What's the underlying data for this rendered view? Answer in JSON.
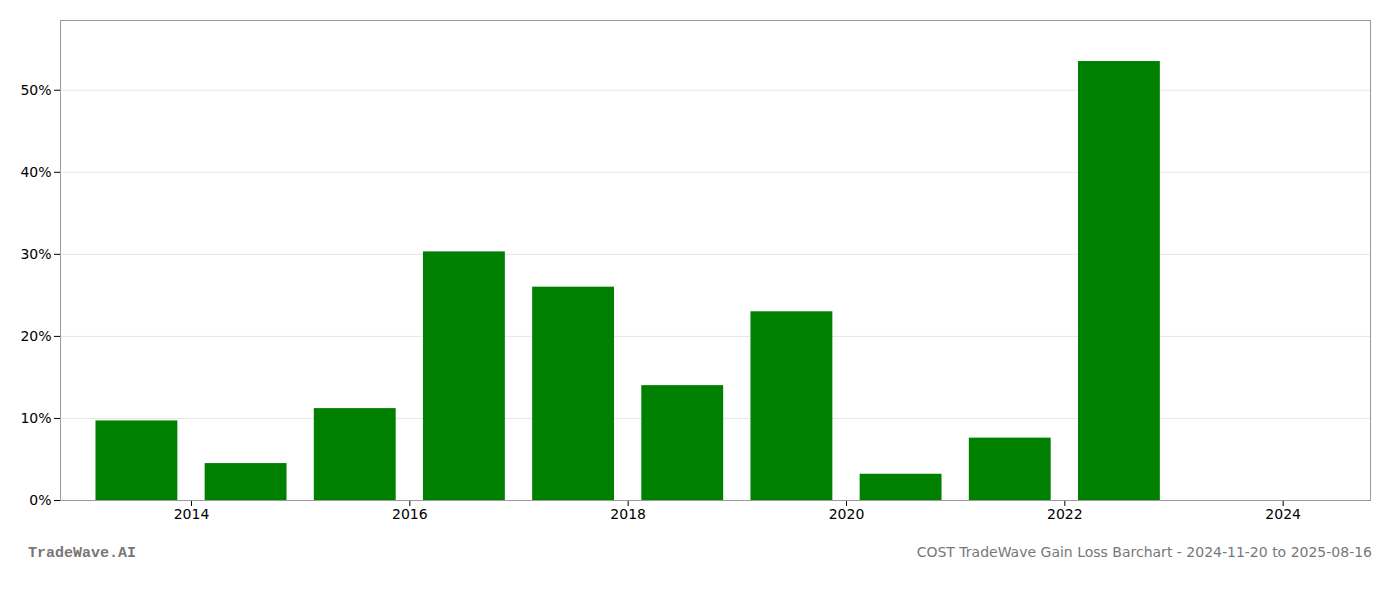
{
  "chart_data": {
    "type": "bar",
    "title": "COST TradeWave Gain Loss Barchart - 2024-11-20 to 2025-08-16",
    "annotations": [
      "TradeWave.AI"
    ],
    "x": [
      2013.5,
      2014.5,
      2015.5,
      2016.5,
      2017.5,
      2018.5,
      2019.5,
      2020.5,
      2021.5,
      2022.5
    ],
    "values": [
      0.097,
      0.045,
      0.112,
      0.303,
      0.26,
      0.14,
      0.23,
      0.032,
      0.076,
      0.535
    ],
    "color": "#008000",
    "xlim": [
      2012.8,
      2024.8
    ],
    "xticks": [
      2014,
      2016,
      2018,
      2020,
      2022,
      2024
    ],
    "ylim": [
      0,
      0.585
    ],
    "yticks": [
      {
        "value": 0,
        "label": "0%"
      },
      {
        "value": 0.1,
        "label": "10%"
      },
      {
        "value": 0.2,
        "label": "20%"
      },
      {
        "value": 0.3,
        "label": "30%"
      },
      {
        "value": 0.4,
        "label": "40%"
      },
      {
        "value": 0.5,
        "label": "50%"
      }
    ],
    "grid": true
  }
}
